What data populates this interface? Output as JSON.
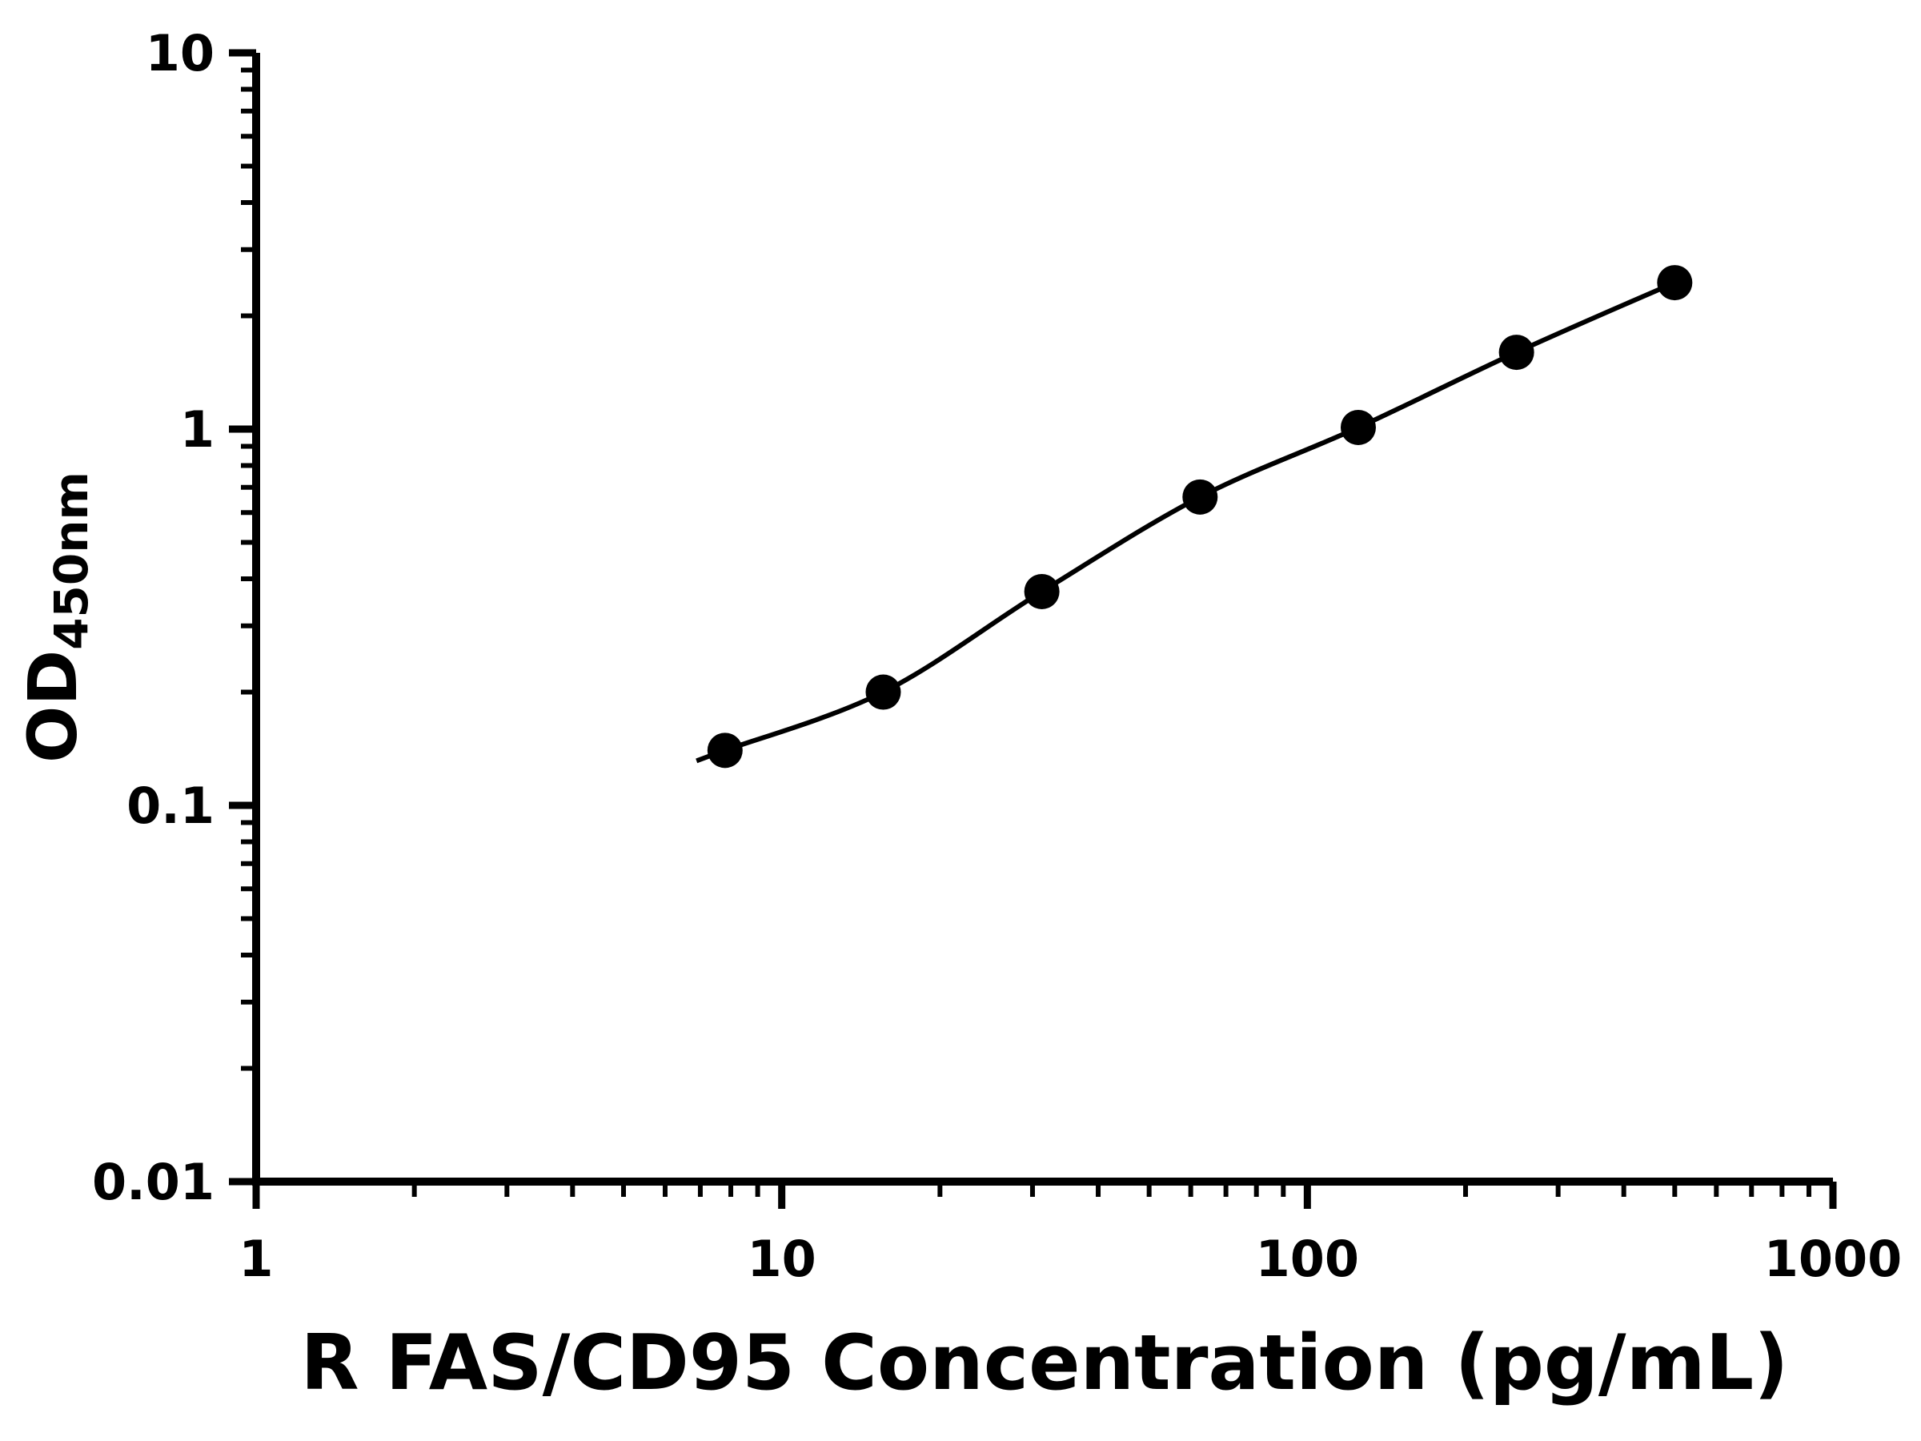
{
  "figure": {
    "background": "#ffffff"
  },
  "chart_data": {
    "type": "scatter",
    "title": "",
    "xlabel": "R FAS/CD95 Concentration (pg/mL)",
    "ylabel_main": "OD",
    "ylabel_sub": "450nm",
    "x": [
      7.8,
      15.6,
      31.25,
      62.5,
      125,
      250,
      500
    ],
    "y": [
      0.14,
      0.2,
      0.37,
      0.66,
      1.01,
      1.6,
      2.45
    ],
    "xscale": "log",
    "yscale": "log",
    "xlim": [
      1,
      1000
    ],
    "ylim": [
      0.01,
      10
    ],
    "x_ticks": [
      1,
      10,
      100,
      1000
    ],
    "x_tick_labels": [
      "1",
      "10",
      "100",
      "1000"
    ],
    "y_ticks": [
      0.01,
      0.1,
      1,
      10
    ],
    "y_tick_labels": [
      "0.01",
      "0.1",
      "1",
      "10"
    ],
    "grid": false,
    "legend": false,
    "marker_shape": "circle",
    "marker_color": "#000000",
    "line_color": "#000000",
    "axis_color": "#000000"
  }
}
